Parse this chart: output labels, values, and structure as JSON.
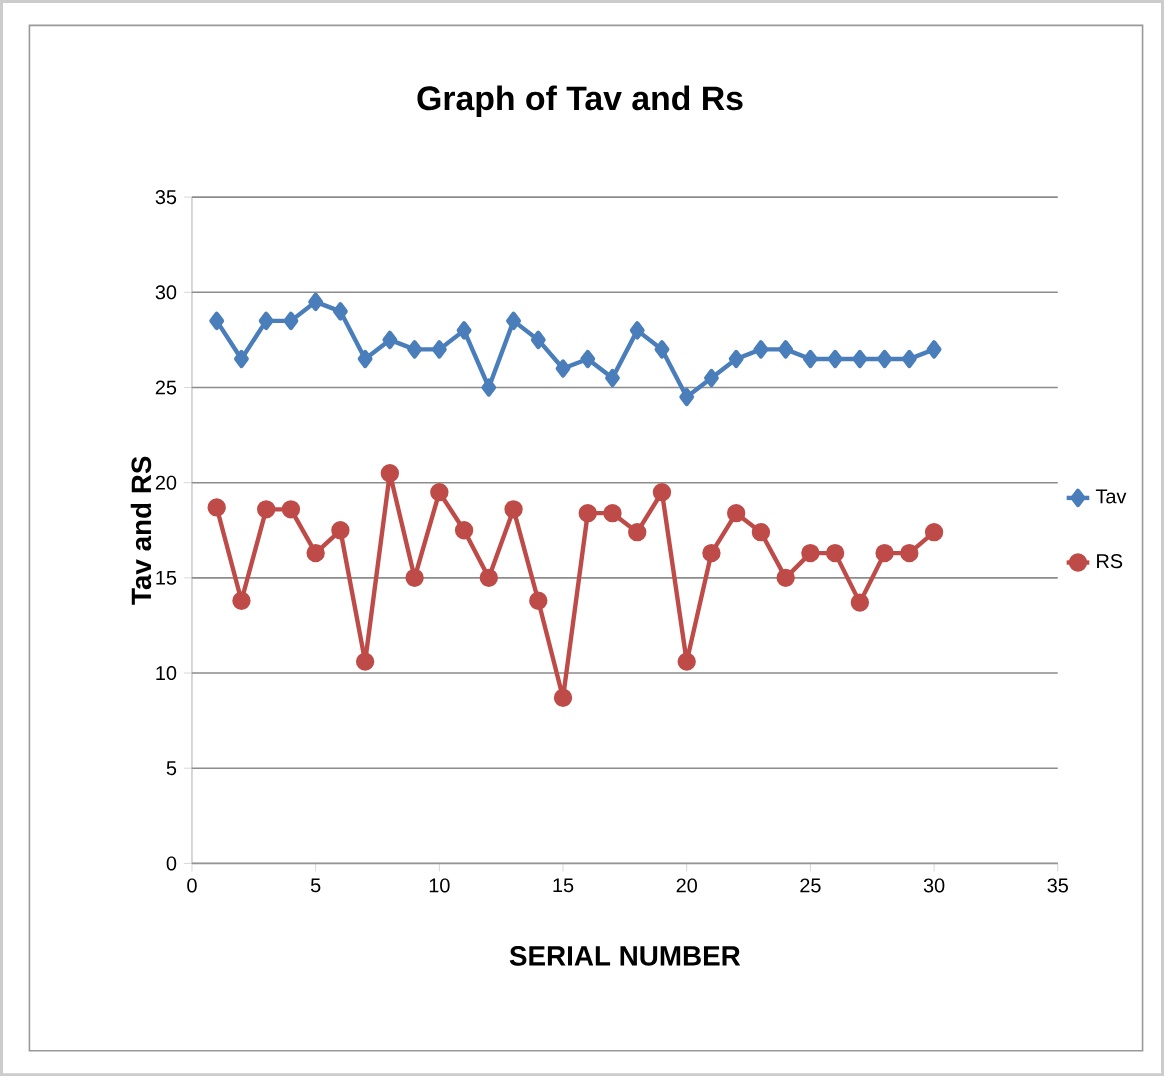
{
  "chart_data": {
    "type": "line",
    "title": "Graph of Tav and Rs",
    "xlabel": "SERIAL NUMBER",
    "ylabel": "Tav and RS",
    "x": [
      1,
      2,
      3,
      4,
      5,
      6,
      7,
      8,
      9,
      10,
      11,
      12,
      13,
      14,
      15,
      16,
      17,
      18,
      19,
      20,
      21,
      22,
      23,
      24,
      25,
      26,
      27,
      28,
      29,
      30
    ],
    "series": [
      {
        "name": "Tav",
        "color": "#4a7ebb",
        "marker": "diamond",
        "values": [
          28.5,
          26.5,
          28.5,
          28.5,
          29.5,
          29,
          26.5,
          27.5,
          27,
          27,
          28,
          25,
          28.5,
          27.5,
          26,
          26.5,
          25.5,
          28,
          27,
          24.5,
          25.5,
          26.5,
          27,
          27,
          26.5,
          26.5,
          26.5,
          26.5,
          26.5,
          27
        ]
      },
      {
        "name": "RS",
        "color": "#be4b48",
        "marker": "circle",
        "values": [
          18.7,
          13.8,
          18.6,
          18.6,
          16.3,
          17.5,
          10.6,
          20.5,
          15,
          19.5,
          17.5,
          15,
          18.6,
          13.8,
          8.7,
          18.4,
          18.4,
          17.4,
          19.5,
          10.6,
          16.3,
          18.4,
          17.4,
          15,
          16.3,
          16.3,
          13.7,
          16.3,
          16.3,
          17.4
        ]
      }
    ],
    "xlim": [
      0,
      35
    ],
    "xticks": [
      0,
      5,
      10,
      15,
      20,
      25,
      30,
      35
    ],
    "ylim": [
      0,
      35
    ],
    "yticks": [
      0,
      5,
      10,
      15,
      20,
      25,
      30,
      35
    ],
    "grid": "y",
    "legend": "right",
    "line_style": "solid"
  }
}
